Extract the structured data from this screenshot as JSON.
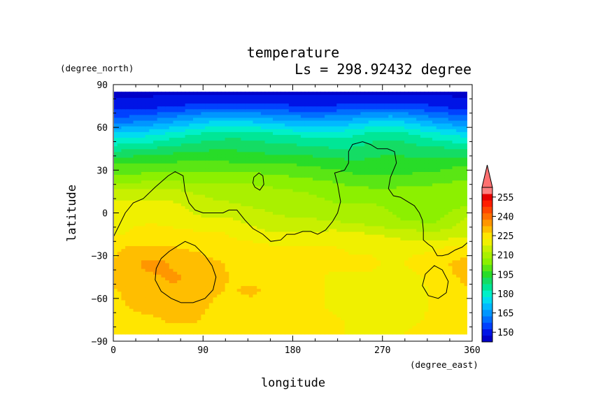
{
  "chart_data": {
    "type": "heatmap",
    "title": "temperature",
    "subtitle": "Ls = 298.92432 degree",
    "xlabel": "longitude",
    "ylabel": "latitude",
    "xunit": "(degree_east)",
    "yunit": "(degree_north)",
    "xlim": [
      0,
      360
    ],
    "ylim": [
      -90,
      90
    ],
    "xticks": [
      "0",
      "90",
      "180",
      "270",
      "360"
    ],
    "yticks": [
      "90",
      "60",
      "30",
      "0",
      "−30",
      "−60",
      "−90"
    ],
    "grid": false,
    "data_lat_range": [
      -85,
      85
    ],
    "colorbar": {
      "levels": [
        150,
        165,
        180,
        195,
        210,
        225,
        240,
        255
      ],
      "tick_labels": [
        "150",
        "165",
        "180",
        "195",
        "210",
        "225",
        "240",
        "255"
      ],
      "bands": [
        {
          "min": 142.5,
          "max": 147.5,
          "color": "#0000c8"
        },
        {
          "min": 147.5,
          "max": 152.5,
          "color": "#0014e6"
        },
        {
          "min": 152.5,
          "max": 157.5,
          "color": "#0041ff"
        },
        {
          "min": 157.5,
          "max": 162.5,
          "color": "#006eff"
        },
        {
          "min": 162.5,
          "max": 167.5,
          "color": "#0096ff"
        },
        {
          "min": 167.5,
          "max": 172.5,
          "color": "#00b9ff"
        },
        {
          "min": 172.5,
          "max": 177.5,
          "color": "#00dcf0"
        },
        {
          "min": 177.5,
          "max": 182.5,
          "color": "#00f0c8"
        },
        {
          "min": 182.5,
          "max": 187.5,
          "color": "#00e696"
        },
        {
          "min": 187.5,
          "max": 192.5,
          "color": "#14dc64"
        },
        {
          "min": 192.5,
          "max": 197.5,
          "color": "#28dc28"
        },
        {
          "min": 197.5,
          "max": 202.5,
          "color": "#5ae614"
        },
        {
          "min": 202.5,
          "max": 207.5,
          "color": "#8cf000"
        },
        {
          "min": 207.5,
          "max": 212.5,
          "color": "#aaf000"
        },
        {
          "min": 212.5,
          "max": 217.5,
          "color": "#c8f000"
        },
        {
          "min": 217.5,
          "max": 222.5,
          "color": "#f0f000"
        },
        {
          "min": 222.5,
          "max": 227.5,
          "color": "#ffe600"
        },
        {
          "min": 227.5,
          "max": 232.5,
          "color": "#ffbe00"
        },
        {
          "min": 232.5,
          "max": 237.5,
          "color": "#ff9600"
        },
        {
          "min": 237.5,
          "max": 242.5,
          "color": "#ff6e00"
        },
        {
          "min": 242.5,
          "max": 247.5,
          "color": "#ff4600"
        },
        {
          "min": 247.5,
          "max": 252.5,
          "color": "#ff1e00"
        },
        {
          "min": 252.5,
          "max": 257.5,
          "color": "#e60000"
        },
        {
          "min": 257.5,
          "max": 262.5,
          "color": "#ff8080"
        }
      ],
      "over_color": "#ff7070",
      "extend": "max"
    },
    "field": {
      "lat": [
        -85,
        -75,
        -65,
        -55,
        -45,
        -35,
        -25,
        -15,
        -5,
        5,
        15,
        25,
        35,
        45,
        55,
        65,
        75,
        85
      ],
      "lon": [
        0,
        20,
        40,
        60,
        80,
        100,
        120,
        140,
        160,
        180,
        200,
        220,
        240,
        260,
        280,
        300,
        320,
        340,
        360
      ],
      "values": [
        [
          224,
          224,
          225,
          226,
          226,
          225,
          224,
          223,
          223,
          223,
          223,
          223,
          222,
          222,
          222,
          223,
          223,
          223,
          224
        ],
        [
          225,
          226,
          227,
          228,
          228,
          226,
          225,
          224,
          223,
          223,
          223,
          223,
          222,
          221,
          221,
          222,
          223,
          224,
          225
        ],
        [
          226,
          228,
          229,
          230,
          229,
          227,
          226,
          225,
          224,
          223,
          223,
          222,
          221,
          220,
          220,
          221,
          223,
          225,
          226
        ],
        [
          227,
          229,
          231,
          232,
          231,
          228,
          227,
          229,
          225,
          224,
          223,
          222,
          221,
          221,
          221,
          221,
          223,
          226,
          227
        ],
        [
          228,
          231,
          232,
          233,
          232,
          229,
          227,
          226,
          225,
          224,
          223,
          222,
          222,
          222,
          222,
          222,
          223,
          227,
          229
        ],
        [
          228,
          232,
          234,
          232,
          230,
          228,
          227,
          226,
          225,
          224,
          223,
          223,
          223,
          223,
          222,
          223,
          224,
          228,
          230
        ],
        [
          226,
          229,
          229,
          228,
          227,
          226,
          225,
          225,
          224,
          223,
          223,
          223,
          222,
          222,
          222,
          222,
          222,
          224,
          225
        ],
        [
          222,
          223,
          224,
          224,
          224,
          224,
          222,
          220,
          218,
          218,
          219,
          220,
          219,
          218,
          216,
          215,
          214,
          215,
          216
        ],
        [
          221,
          222,
          222,
          221,
          219,
          218,
          218,
          216,
          214,
          213,
          213,
          212,
          211,
          209,
          208,
          207,
          206,
          210,
          216
        ],
        [
          220,
          220,
          220,
          219,
          216,
          214,
          213,
          212,
          211,
          210,
          209,
          208,
          208,
          208,
          207,
          206,
          205,
          206,
          208
        ],
        [
          214,
          214,
          215,
          214,
          212,
          211,
          211,
          210,
          209,
          208,
          207,
          206,
          205,
          204,
          204,
          205,
          205,
          206,
          206
        ],
        [
          203,
          204,
          205,
          205,
          205,
          205,
          205,
          205,
          204,
          203,
          202,
          201,
          199,
          198,
          198,
          199,
          200,
          201,
          202
        ],
        [
          197,
          198,
          198,
          198,
          199,
          199,
          198,
          198,
          197,
          197,
          196,
          195,
          194,
          194,
          195,
          194,
          194,
          196,
          197
        ],
        [
          186,
          187,
          188,
          190,
          191,
          192,
          192,
          191,
          190,
          190,
          189,
          188,
          188,
          190,
          191,
          190,
          189,
          188,
          187
        ],
        [
          174,
          175,
          177,
          180,
          183,
          185,
          186,
          185,
          184,
          182,
          181,
          180,
          182,
          185,
          186,
          183,
          180,
          177,
          175
        ],
        [
          160,
          161,
          163,
          166,
          169,
          172,
          172,
          171,
          169,
          167,
          166,
          167,
          169,
          172,
          173,
          170,
          166,
          163,
          161
        ],
        [
          150,
          150,
          151,
          152,
          154,
          155,
          155,
          155,
          154,
          153,
          153,
          153,
          154,
          155,
          155,
          154,
          153,
          151,
          150
        ],
        [
          146,
          146,
          146,
          146,
          146,
          146,
          146,
          146,
          146,
          146,
          146,
          146,
          146,
          146,
          146,
          146,
          146,
          146,
          146
        ]
      ]
    },
    "contours": [
      {
        "id": "main-contour",
        "points": [
          [
            0,
            -17
          ],
          [
            5,
            -10
          ],
          [
            12,
            0
          ],
          [
            20,
            7
          ],
          [
            30,
            10
          ],
          [
            42,
            18
          ],
          [
            55,
            26
          ],
          [
            62,
            29
          ],
          [
            70,
            26
          ],
          [
            72,
            15
          ],
          [
            76,
            7
          ],
          [
            82,
            2
          ],
          [
            90,
            0
          ],
          [
            100,
            0
          ],
          [
            110,
            0
          ],
          [
            116,
            2
          ],
          [
            124,
            2
          ],
          [
            132,
            -5
          ],
          [
            140,
            -11
          ],
          [
            150,
            -15
          ],
          [
            158,
            -20
          ],
          [
            168,
            -19
          ],
          [
            174,
            -15
          ],
          [
            182,
            -15
          ],
          [
            190,
            -13
          ],
          [
            198,
            -13
          ],
          [
            205,
            -15
          ],
          [
            213,
            -12
          ],
          [
            220,
            -6
          ],
          [
            225,
            0
          ],
          [
            228,
            8
          ],
          [
            225,
            20
          ],
          [
            222,
            28
          ],
          [
            232,
            30
          ],
          [
            236,
            35
          ],
          [
            236,
            43
          ],
          [
            240,
            48
          ],
          [
            250,
            50
          ],
          [
            258,
            48
          ],
          [
            265,
            45
          ],
          [
            275,
            45
          ],
          [
            282,
            43
          ],
          [
            284,
            35
          ],
          [
            278,
            25
          ],
          [
            276,
            17
          ],
          [
            281,
            12
          ],
          [
            288,
            11
          ],
          [
            295,
            8
          ],
          [
            302,
            5
          ],
          [
            307,
            0
          ],
          [
            310,
            -5
          ],
          [
            311,
            -12
          ],
          [
            311,
            -19
          ],
          [
            316,
            -22
          ],
          [
            320,
            -24
          ],
          [
            325,
            -30
          ],
          [
            330,
            -30
          ],
          [
            336,
            -29
          ],
          [
            343,
            -26
          ],
          [
            350,
            -24
          ],
          [
            355,
            -21
          ],
          [
            358,
            -20
          ]
        ],
        "closed": false
      },
      {
        "id": "south-contour-1",
        "points": [
          [
            65,
            -23
          ],
          [
            72,
            -20
          ],
          [
            82,
            -23
          ],
          [
            92,
            -30
          ],
          [
            99,
            -37
          ],
          [
            103,
            -45
          ],
          [
            100,
            -54
          ],
          [
            92,
            -60
          ],
          [
            80,
            -63
          ],
          [
            68,
            -63
          ],
          [
            58,
            -60
          ],
          [
            48,
            -55
          ],
          [
            42,
            -47
          ],
          [
            43,
            -39
          ],
          [
            48,
            -32
          ],
          [
            56,
            -27
          ]
        ],
        "closed": true
      },
      {
        "id": "south-contour-2",
        "points": [
          [
            322,
            -37
          ],
          [
            330,
            -40
          ],
          [
            336,
            -48
          ],
          [
            334,
            -56
          ],
          [
            326,
            -60
          ],
          [
            316,
            -58
          ],
          [
            310,
            -51
          ],
          [
            313,
            -43
          ]
        ],
        "closed": true
      },
      {
        "id": "north-contour-small",
        "points": [
          [
            141,
            25
          ],
          [
            146,
            28
          ],
          [
            150,
            26
          ],
          [
            151,
            20
          ],
          [
            147,
            16
          ],
          [
            142,
            18
          ],
          [
            140,
            21
          ]
        ],
        "closed": true
      }
    ]
  }
}
